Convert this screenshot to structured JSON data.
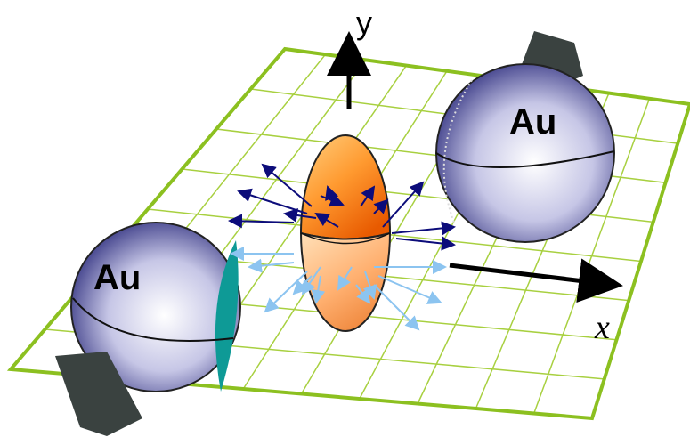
{
  "axes": {
    "y": "y",
    "x": "x"
  },
  "nuclei": [
    {
      "label": "Au"
    },
    {
      "label": "Au"
    }
  ]
}
